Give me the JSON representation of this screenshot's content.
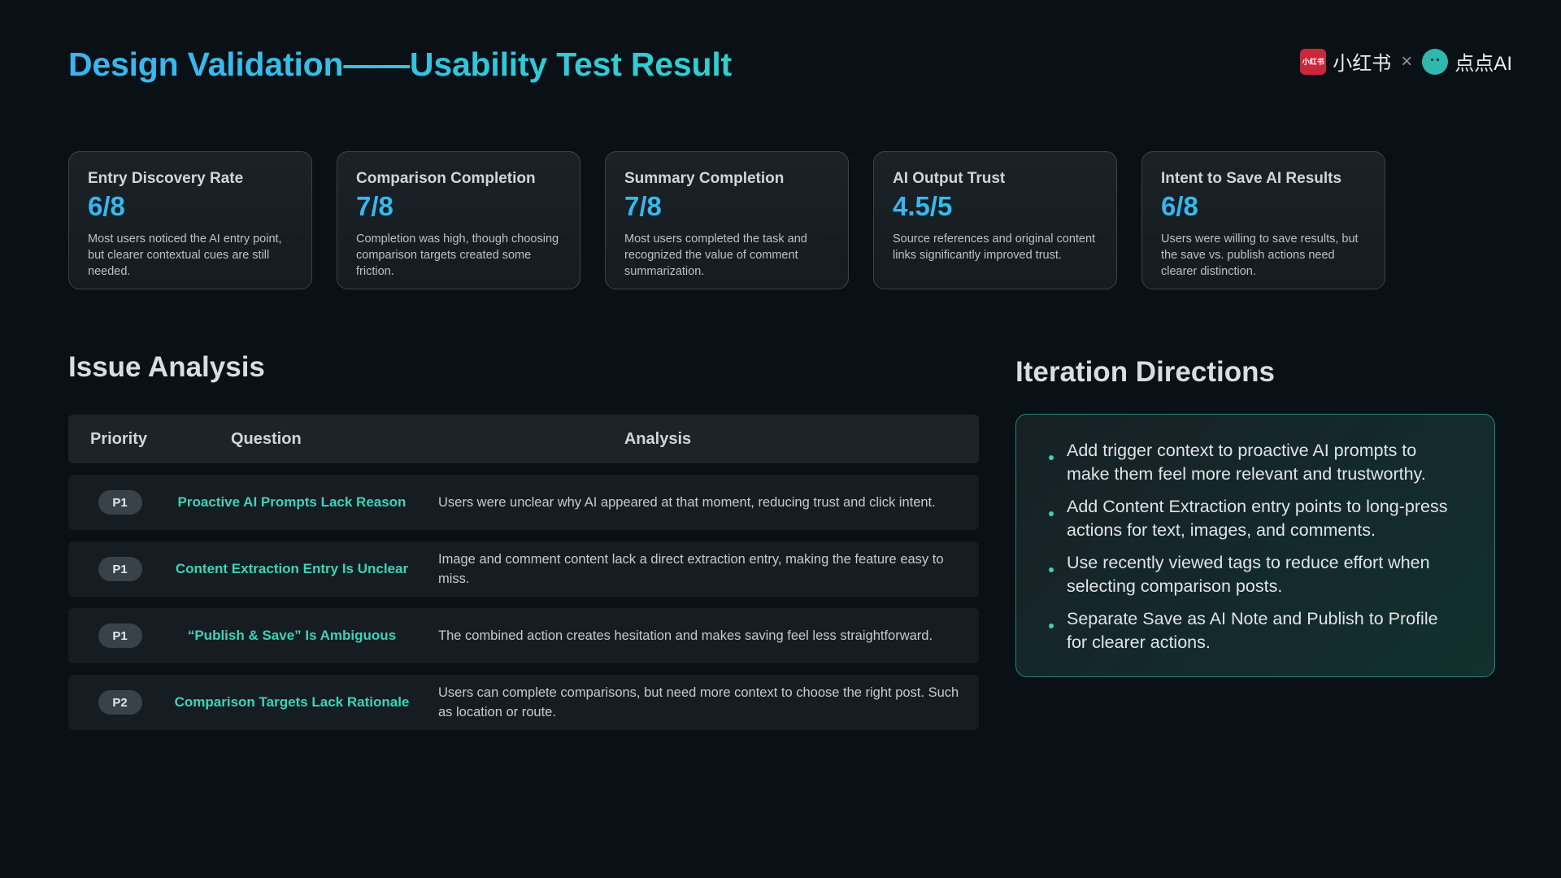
{
  "header": {
    "title": "Design Validation——Usability Test Result",
    "brand_left_logo_text": "小红书",
    "brand_left": "小红书",
    "brand_separator": "×",
    "brand_right": "点点AI"
  },
  "metrics": [
    {
      "label": "Entry Discovery Rate",
      "value": "6/8",
      "desc": "Most users noticed the AI entry point, but clearer contextual cues are still needed."
    },
    {
      "label": "Comparison Completion",
      "value": "7/8",
      "desc": "Completion was high, though choosing comparison targets created some friction."
    },
    {
      "label": "Summary Completion",
      "value": "7/8",
      "desc": "Most users completed the task and recognized the value of comment summarization."
    },
    {
      "label": "AI Output Trust",
      "value": "4.5/5",
      "desc": "Source references and original content links significantly improved trust."
    },
    {
      "label": "Intent to Save AI Results",
      "value": "6/8",
      "desc": "Users were willing to save results, but the save vs. publish actions need clearer distinction."
    }
  ],
  "issue_analysis": {
    "title": "Issue Analysis",
    "headers": {
      "priority": "Priority",
      "question": "Question",
      "analysis": "Analysis"
    },
    "rows": [
      {
        "priority": "P1",
        "question": "Proactive AI Prompts Lack Reason",
        "analysis": "Users were unclear why AI appeared at that moment, reducing trust and click intent."
      },
      {
        "priority": "P1",
        "question": "Content Extraction Entry Is Unclear",
        "analysis": "Image and comment content lack a direct extraction entry, making the feature easy to miss."
      },
      {
        "priority": "P1",
        "question": "“Publish & Save” Is Ambiguous",
        "analysis": "The combined action creates hesitation and makes saving feel less straightforward."
      },
      {
        "priority": "P2",
        "question": "Comparison Targets Lack Rationale",
        "analysis": "Users can complete comparisons, but need more context to choose the right post. Such as location or route."
      }
    ]
  },
  "iteration": {
    "title": "Iteration Directions",
    "items": [
      "Add trigger context to proactive AI prompts to make them feel more relevant and trustworthy.",
      "Add Content Extraction entry points to long-press actions for text, images, and comments.",
      "Use recently viewed tags to reduce effort when selecting comparison posts.",
      "Separate Save as AI Note and Publish to Profile for clearer actions."
    ]
  },
  "colors": {
    "accent_start": "#3bb3f3",
    "accent_end": "#2fd0cf",
    "question_text": "#3fd1b8",
    "background": "#0a1116"
  }
}
